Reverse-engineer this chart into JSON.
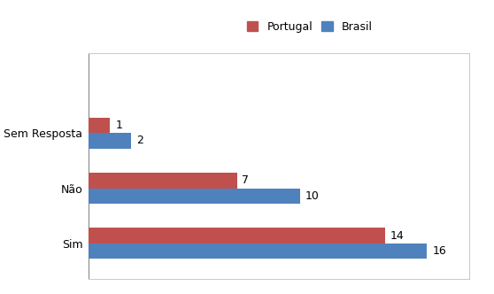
{
  "categories": [
    "Sim",
    "Não",
    "Sem Resposta"
  ],
  "portugal_values": [
    14,
    7,
    1
  ],
  "brasil_values": [
    16,
    10,
    2
  ],
  "portugal_color": "#C0504D",
  "brasil_color": "#4F81BD",
  "legend_labels": [
    "Portugal",
    "Brasil"
  ],
  "xlim": [
    0,
    18
  ],
  "bar_height": 0.28,
  "label_fontsize": 9,
  "tick_fontsize": 9,
  "legend_fontsize": 9,
  "background_color": "#FFFFFF",
  "border_color": "#AAAAAA"
}
